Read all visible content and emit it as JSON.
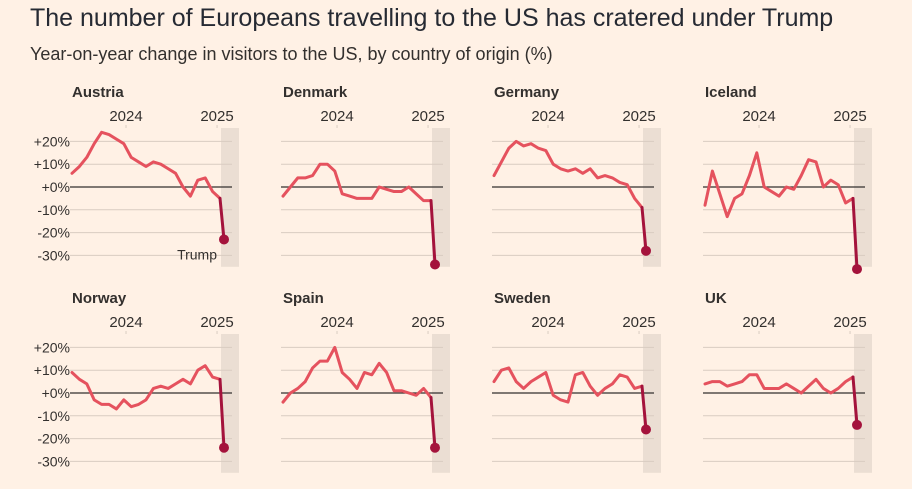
{
  "title": "The number of Europeans travelling to the US has cratered under Trump",
  "subtitle": "Year-on-year change in visitors to the US, by country of origin (%)",
  "colors": {
    "background": "#fff1e5",
    "line": "#e5525e",
    "highlight": "#a4133c",
    "shade": "#ebded3",
    "grid": "#d9ccc1",
    "zero": "#33302e"
  },
  "annotation": "Trump",
  "chart_data": {
    "type": "line",
    "ylabel": "%",
    "ylim": [
      -35,
      25
    ],
    "yticks": [
      {
        "value": 20,
        "label": "+20%"
      },
      {
        "value": 10,
        "label": "+10%"
      },
      {
        "value": 0,
        "label": "+0%"
      },
      {
        "value": -10,
        "label": "-10%"
      },
      {
        "value": -20,
        "label": "-20%"
      },
      {
        "value": -30,
        "label": "-30%"
      }
    ],
    "xticks": [
      {
        "index": 12,
        "label": "2024"
      },
      {
        "index": 24,
        "label": "2025"
      }
    ],
    "shaded_from_index": 25,
    "highlight_from_index": 25,
    "series": [
      {
        "name": "Austria",
        "values": [
          6,
          9,
          13,
          19,
          24,
          23,
          21,
          19,
          13,
          11,
          9,
          11,
          10,
          8,
          6,
          0,
          -4,
          3,
          4,
          -2,
          -5,
          -23
        ]
      },
      {
        "name": "Denmark",
        "values": [
          -4,
          0,
          4,
          4,
          5,
          10,
          10,
          7,
          -3,
          -4,
          -5,
          -5,
          -5,
          0,
          -1,
          -2,
          -2,
          0,
          -3,
          -6,
          -6,
          -34
        ]
      },
      {
        "name": "Germany",
        "values": [
          5,
          11,
          17,
          20,
          18,
          19,
          17,
          16,
          10,
          8,
          7,
          8,
          6,
          8,
          4,
          5,
          4,
          2,
          1,
          -5,
          -9,
          -28
        ]
      },
      {
        "name": "Iceland",
        "values": [
          -8,
          7,
          -3,
          -13,
          -5,
          -3,
          5,
          15,
          0,
          -2,
          -4,
          0,
          -1,
          5,
          12,
          11,
          0,
          3,
          1,
          -7,
          -5,
          -36
        ]
      },
      {
        "name": "Norway",
        "values": [
          9,
          6,
          4,
          -3,
          -5,
          -5,
          -7,
          -3,
          -6,
          -5,
          -3,
          2,
          3,
          2,
          4,
          6,
          4,
          10,
          12,
          7,
          6,
          -24
        ]
      },
      {
        "name": "Spain",
        "values": [
          -4,
          0,
          2,
          5,
          11,
          14,
          14,
          20,
          9,
          6,
          2,
          9,
          8,
          13,
          9,
          1,
          1,
          0,
          -1,
          2,
          -2,
          -24
        ]
      },
      {
        "name": "Sweden",
        "values": [
          5,
          10,
          11,
          5,
          2,
          5,
          7,
          9,
          -1,
          -3,
          -4,
          8,
          9,
          3,
          -1,
          2,
          4,
          8,
          7,
          2,
          3,
          -16
        ]
      },
      {
        "name": "UK",
        "values": [
          4,
          5,
          5,
          3,
          4,
          5,
          8,
          8,
          2,
          2,
          2,
          4,
          2,
          0,
          3,
          6,
          2,
          0,
          2,
          5,
          7,
          -14
        ]
      }
    ]
  }
}
